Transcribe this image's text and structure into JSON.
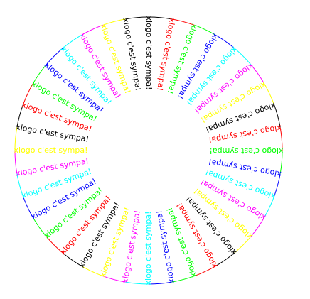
{
  "label": "xlogo c'est sympa!",
  "count": 36,
  "palette": [
    "#000000",
    "#ff0000",
    "#00ff00",
    "#0000ff",
    "#00ffff",
    "#ff00ff",
    "#ffff00"
  ],
  "ring": {
    "outer_color": "#000000",
    "inner_color": "#000000",
    "segment_colors": [
      "#000000",
      "#ff0000",
      "#00ff00",
      "#0000ff",
      "#00ffff",
      "#ff00ff",
      "#ffff00"
    ]
  }
}
